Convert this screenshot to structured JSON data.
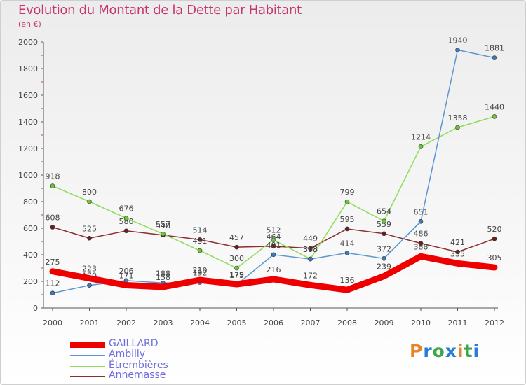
{
  "header": {
    "title": "Evolution du Montant de la Dette par Habitant",
    "subtitle": "(en €)"
  },
  "brand": {
    "text": "Proxiti",
    "colors": [
      "#e8832a",
      "#2a7bd8",
      "#3aa84a",
      "#2a7bd8",
      "#e8832a",
      "#3aa84a",
      "#2a7bd8"
    ]
  },
  "colors": {
    "title": "#c8356e",
    "legend_text": "#6d6dde",
    "axis": "#555555"
  },
  "chart_data": {
    "type": "line",
    "title": "Evolution du Montant de la Dette par Habitant",
    "subtitle": "(en €)",
    "xlabel": "",
    "ylabel": "",
    "x": [
      "2000",
      "2001",
      "2002",
      "2003",
      "2004",
      "2005",
      "2006",
      "2007",
      "2008",
      "2009",
      "2010",
      "2011",
      "2012"
    ],
    "ylim": [
      0,
      2000
    ],
    "yticks": [
      0,
      200,
      400,
      600,
      800,
      1000,
      1200,
      1400,
      1600,
      1800,
      2000
    ],
    "grid": false,
    "legend_position": "bottom-left",
    "series": [
      {
        "name": "Annemasse",
        "color": "#8b2f2f",
        "marker": "#6b1f1f",
        "values": [
          608,
          525,
          580,
          548,
          514,
          457,
          464,
          449,
          595,
          559,
          486,
          421,
          520
        ],
        "labels": [
          "608",
          "525",
          "580",
          "548",
          "514",
          "457",
          "464",
          "449",
          "595",
          "559",
          "486",
          "421",
          "520"
        ]
      },
      {
        "name": "Étrembières",
        "color": "#8fdc5a",
        "marker": "#6fc43a",
        "values": [
          918,
          800,
          676,
          557,
          431,
          300,
          512,
          368,
          799,
          654,
          1214,
          1358,
          1440
        ],
        "labels": [
          "918",
          "800",
          "676",
          "557",
          "431",
          "300",
          "512",
          "368",
          "799",
          "654",
          "1214",
          "1358",
          "1440"
        ]
      },
      {
        "name": "Ambilly",
        "color": "#5d97cf",
        "marker": "#3d7ab8",
        "values": [
          112,
          170,
          206,
          188,
          192,
          175,
          401,
          368,
          414,
          372,
          651,
          1940,
          1881
        ],
        "labels": [
          "112",
          "170",
          "206",
          "188",
          "192",
          "175",
          "401",
          "368",
          "414",
          "372",
          "651",
          "1940",
          "1881"
        ]
      },
      {
        "name": "GAILLARD",
        "color": "#ee0000",
        "marker": "#ee0000",
        "values": [
          275,
          223,
          171,
          158,
          210,
          179,
          216,
          172,
          136,
          239,
          388,
          335,
          305
        ],
        "labels": [
          "275",
          "223",
          "171",
          "158",
          "210",
          "179",
          "216",
          "172",
          "136",
          "239",
          "388",
          "335",
          "305"
        ]
      }
    ],
    "legend": [
      {
        "name": "GAILLARD",
        "color": "#ee0000",
        "thick": true
      },
      {
        "name": "Ambilly",
        "color": "#5d97cf",
        "thick": false
      },
      {
        "name": "Étrembières",
        "color": "#8fdc5a",
        "thick": false
      },
      {
        "name": "Annemasse",
        "color": "#8b2f2f",
        "thick": false
      }
    ]
  }
}
